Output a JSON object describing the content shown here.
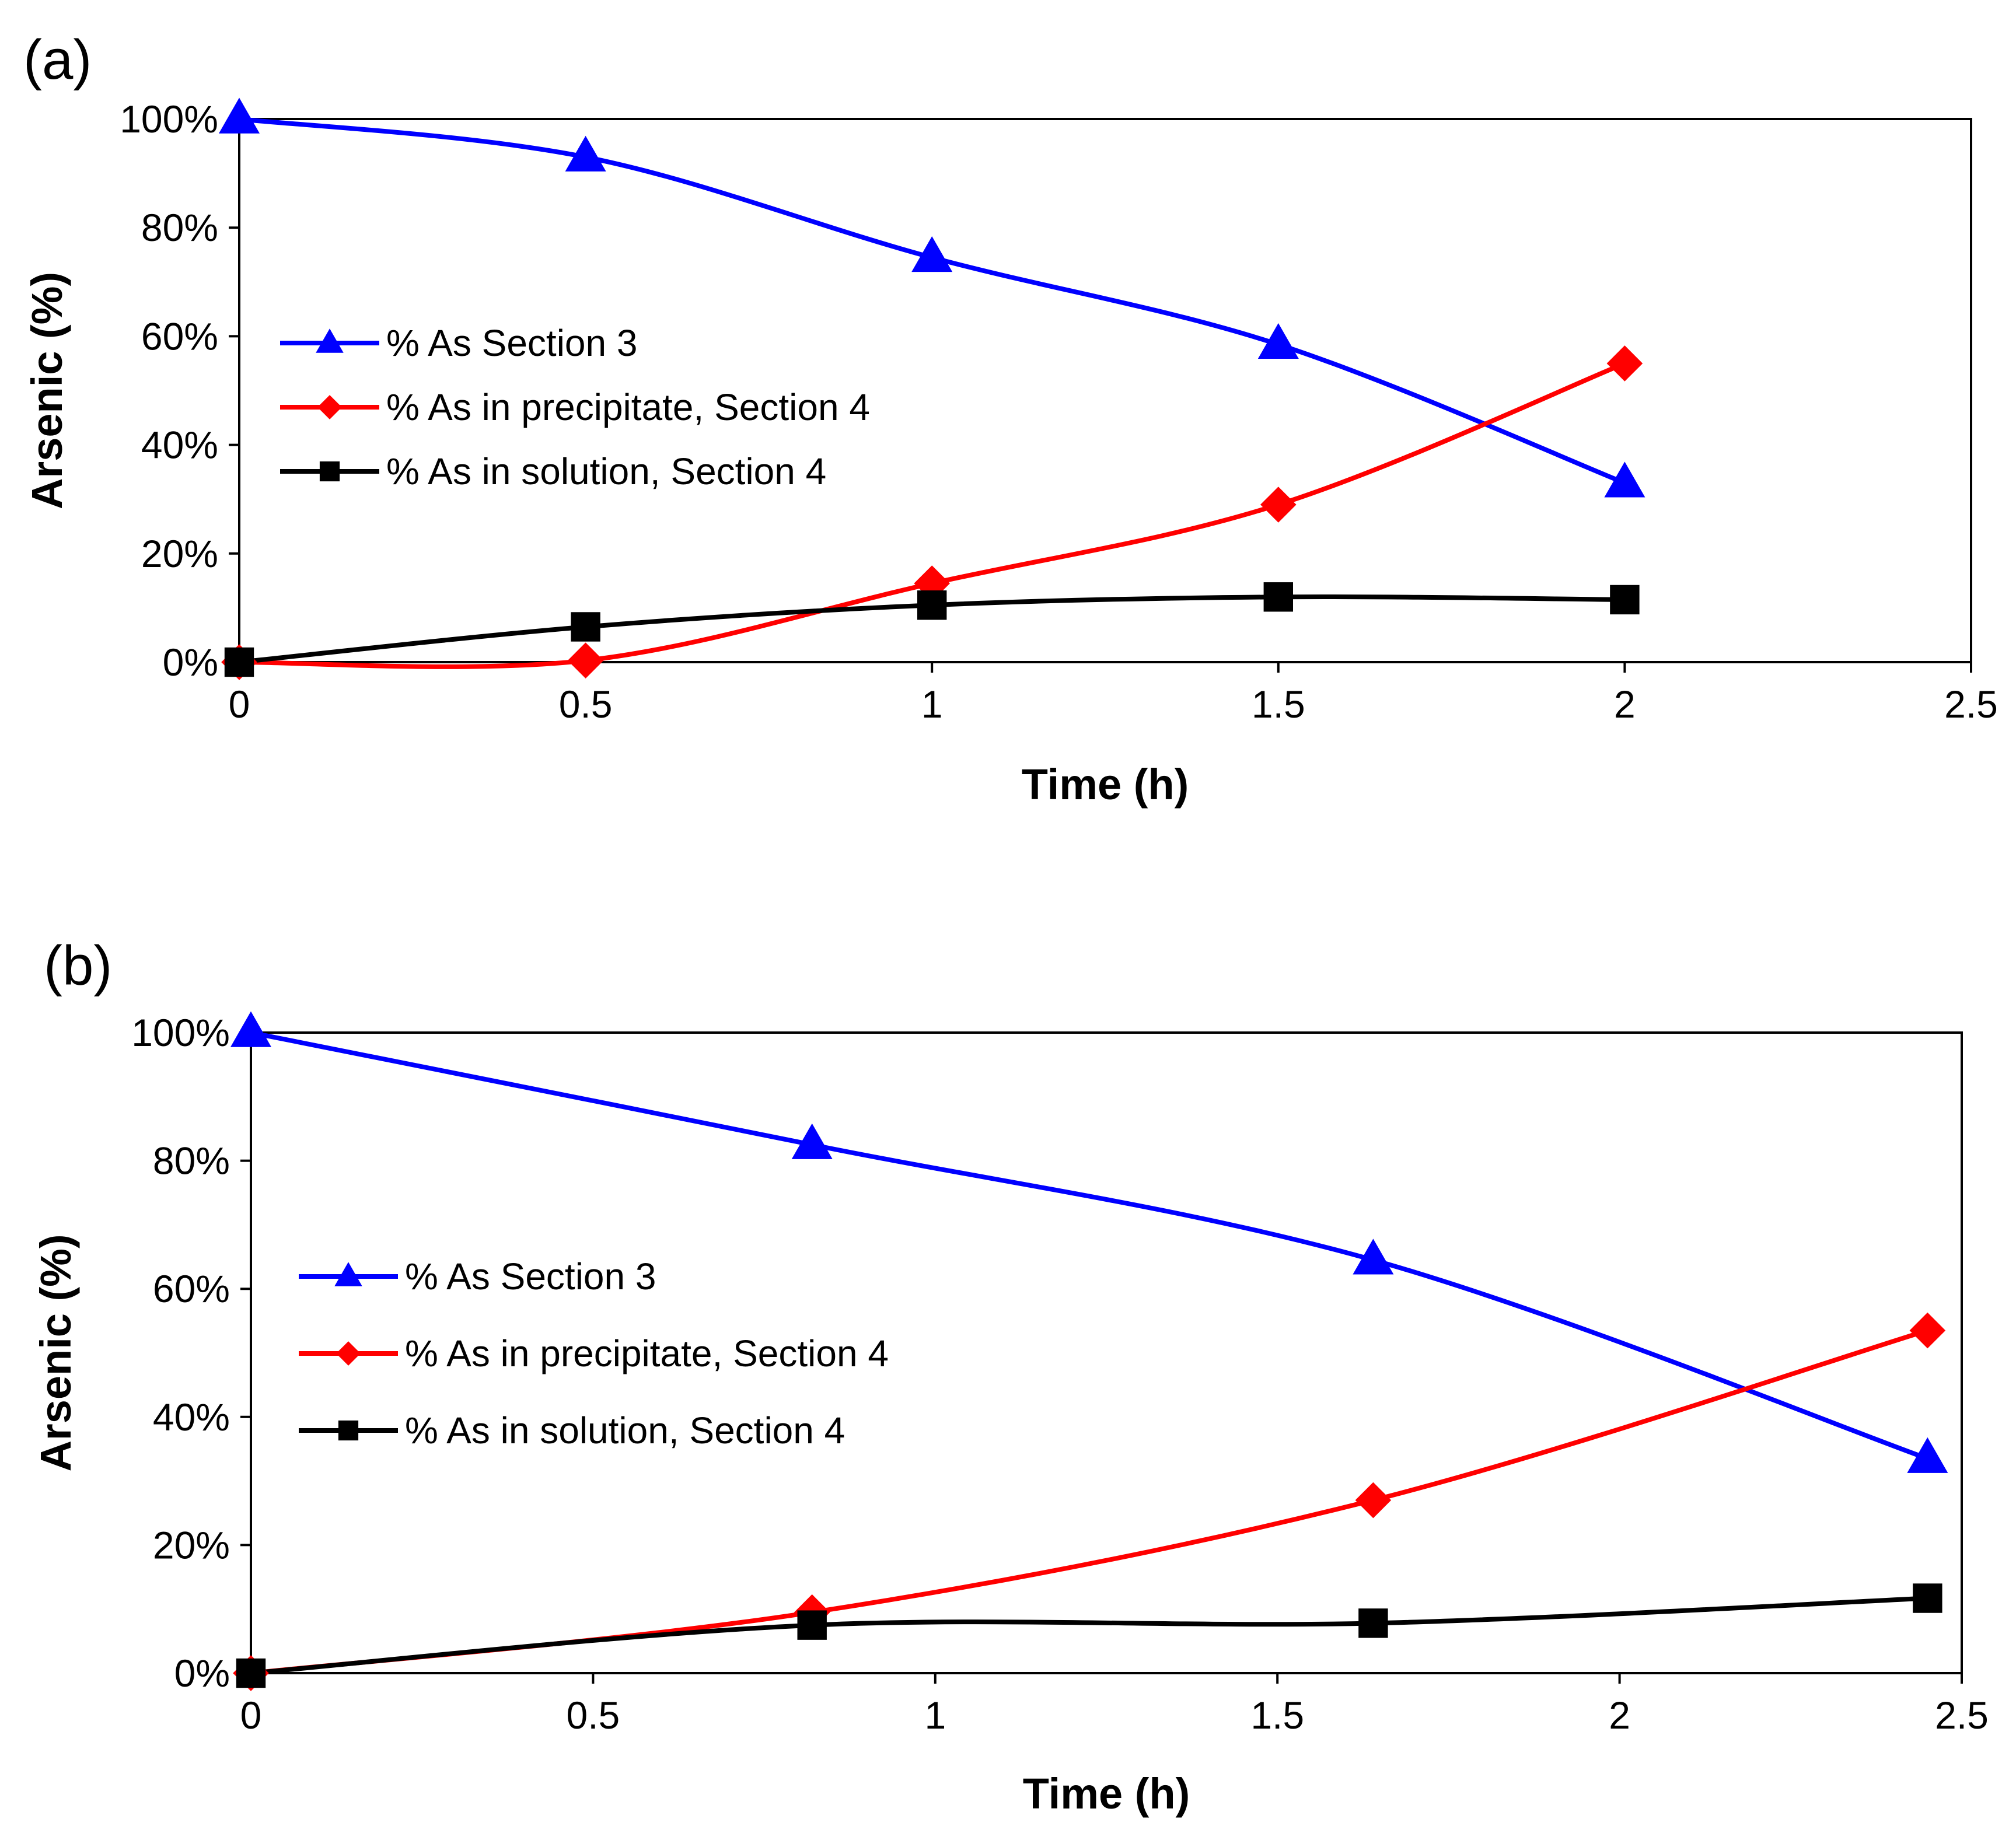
{
  "chart_data": [
    {
      "type": "line",
      "panel_label": "(a)",
      "xlabel": "Time (h)",
      "ylabel": "Arsenic (%)",
      "xlim": [
        0,
        2.5
      ],
      "ylim": [
        0,
        100
      ],
      "x_ticks": [
        0,
        0.5,
        1,
        1.5,
        2,
        2.5
      ],
      "x_tick_labels": [
        "0",
        "0.5",
        "1",
        "1.5",
        "2",
        "2.5"
      ],
      "y_ticks": [
        0,
        20,
        40,
        60,
        80,
        100
      ],
      "y_tick_labels": [
        "0%",
        "20%",
        "40%",
        "60%",
        "80%",
        "100%"
      ],
      "grid": false,
      "legend_position": "center-left",
      "series": [
        {
          "name": "% As Section 3",
          "color": "#0000FF",
          "marker": "triangle",
          "x": [
            0,
            0.5,
            1,
            1.5,
            2
          ],
          "values": [
            100,
            93,
            74.5,
            58.5,
            33
          ]
        },
        {
          "name": "% As in precipitate, Section 4",
          "color": "#FF0000",
          "marker": "diamond",
          "x": [
            0,
            0.5,
            1,
            1.5,
            2
          ],
          "values": [
            0,
            0.3,
            14.5,
            29,
            55
          ]
        },
        {
          "name": "% As in solution, Section 4",
          "color": "#000000",
          "marker": "square",
          "x": [
            0,
            0.5,
            1,
            1.5,
            2
          ],
          "values": [
            0,
            6.5,
            10.5,
            12,
            11.5
          ]
        }
      ]
    },
    {
      "type": "line",
      "panel_label": "(b)",
      "xlabel": "Time (h)",
      "ylabel": "Arsenic (%)",
      "xlim": [
        0,
        2.5
      ],
      "ylim": [
        0,
        100
      ],
      "x_ticks": [
        0,
        0.5,
        1,
        1.5,
        2,
        2.5
      ],
      "x_tick_labels": [
        "0",
        "0.5",
        "1",
        "1.5",
        "2",
        "2.5"
      ],
      "y_ticks": [
        0,
        20,
        40,
        60,
        80,
        100
      ],
      "y_tick_labels": [
        "0%",
        "20%",
        "40%",
        "60%",
        "80%",
        "100%"
      ],
      "grid": false,
      "legend_position": "center-left",
      "series": [
        {
          "name": "% As Section 3",
          "color": "#0000FF",
          "marker": "triangle",
          "x": [
            0,
            0.82,
            1.64,
            2.45
          ],
          "values": [
            100,
            82.5,
            64.5,
            33.5
          ]
        },
        {
          "name": "% As in precipitate, Section 4",
          "color": "#FF0000",
          "marker": "diamond",
          "x": [
            0,
            0.82,
            1.64,
            2.45
          ],
          "values": [
            0,
            9.5,
            27,
            53.5
          ]
        },
        {
          "name": "% As in solution, Section 4",
          "color": "#000000",
          "marker": "square",
          "x": [
            0,
            0.82,
            1.64,
            2.45
          ],
          "values": [
            0,
            7.5,
            7.8,
            11.7
          ]
        }
      ]
    }
  ]
}
